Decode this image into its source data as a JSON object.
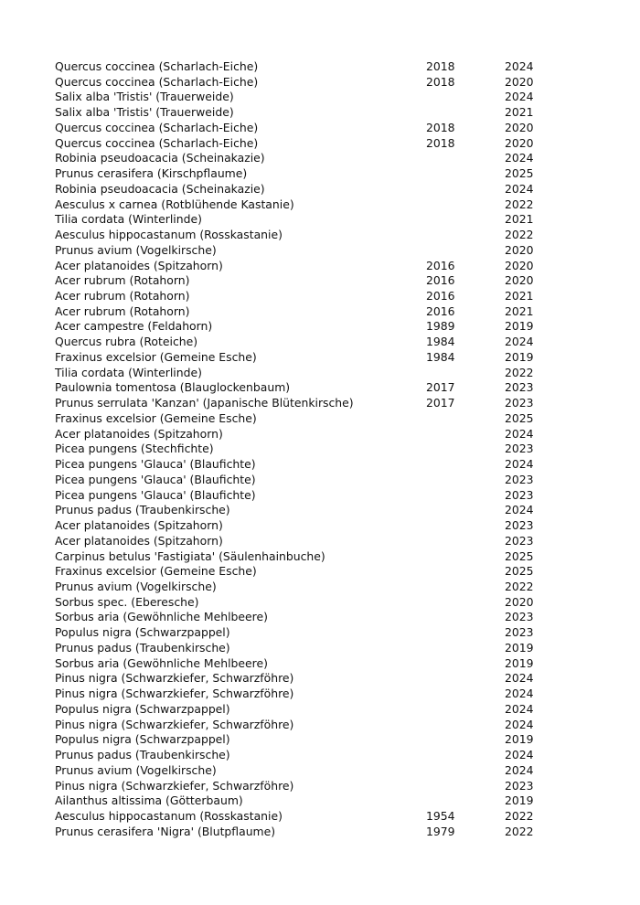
{
  "rows": [
    [
      "Quercus coccinea (Scharlach-Eiche)",
      "2018",
      "2024"
    ],
    [
      "Quercus coccinea (Scharlach-Eiche)",
      "2018",
      "2020"
    ],
    [
      "Salix alba 'Tristis' (Trauerweide)",
      "",
      "2024"
    ],
    [
      "Salix alba 'Tristis' (Trauerweide)",
      "",
      "2021"
    ],
    [
      "Quercus coccinea (Scharlach-Eiche)",
      "2018",
      "2020"
    ],
    [
      "Quercus coccinea (Scharlach-Eiche)",
      "2018",
      "2020"
    ],
    [
      "Robinia pseudoacacia (Scheinakazie)",
      "",
      "2024"
    ],
    [
      "Prunus cerasifera (Kirschpflaume)",
      "",
      "2025"
    ],
    [
      "Robinia pseudoacacia (Scheinakazie)",
      "",
      "2024"
    ],
    [
      "Aesculus x carnea (Rotblühende Kastanie)",
      "",
      "2022"
    ],
    [
      "Tilia cordata (Winterlinde)",
      "",
      "2021"
    ],
    [
      "Aesculus hippocastanum (Rosskastanie)",
      "",
      "2022"
    ],
    [
      "Prunus avium (Vogelkirsche)",
      "",
      "2020"
    ],
    [
      "Acer platanoides (Spitzahorn)",
      "2016",
      "2020"
    ],
    [
      "Acer rubrum (Rotahorn)",
      "2016",
      "2020"
    ],
    [
      "Acer rubrum (Rotahorn)",
      "2016",
      "2021"
    ],
    [
      "Acer rubrum (Rotahorn)",
      "2016",
      "2021"
    ],
    [
      "Acer campestre (Feldahorn)",
      "1989",
      "2019"
    ],
    [
      "Quercus rubra (Roteiche)",
      "1984",
      "2024"
    ],
    [
      "Fraxinus excelsior (Gemeine Esche)",
      "1984",
      "2019"
    ],
    [
      "Tilia cordata (Winterlinde)",
      "",
      "2022"
    ],
    [
      "Paulownia tomentosa (Blauglockenbaum)",
      "2017",
      "2023"
    ],
    [
      "Prunus serrulata 'Kanzan' (Japanische Blütenkirsche)",
      "2017",
      "2023"
    ],
    [
      "Fraxinus excelsior (Gemeine Esche)",
      "",
      "2025"
    ],
    [
      "Acer platanoides (Spitzahorn)",
      "",
      "2024"
    ],
    [
      "Picea pungens (Stechfichte)",
      "",
      "2023"
    ],
    [
      "Picea pungens 'Glauca' (Blaufichte)",
      "",
      "2024"
    ],
    [
      "Picea pungens 'Glauca' (Blaufichte)",
      "",
      "2023"
    ],
    [
      "Picea pungens 'Glauca' (Blaufichte)",
      "",
      "2023"
    ],
    [
      "Prunus padus (Traubenkirsche)",
      "",
      "2024"
    ],
    [
      "Acer platanoides (Spitzahorn)",
      "",
      "2023"
    ],
    [
      "Acer platanoides (Spitzahorn)",
      "",
      "2023"
    ],
    [
      "Carpinus betulus 'Fastigiata' (Säulenhainbuche)",
      "",
      "2025"
    ],
    [
      "Fraxinus excelsior (Gemeine Esche)",
      "",
      "2025"
    ],
    [
      "Prunus avium (Vogelkirsche)",
      "",
      "2022"
    ],
    [
      "Sorbus spec. (Eberesche)",
      "",
      "2020"
    ],
    [
      "Sorbus aria (Gewöhnliche Mehlbeere)",
      "",
      "2023"
    ],
    [
      "Populus nigra (Schwarzpappel)",
      "",
      "2023"
    ],
    [
      "Prunus padus (Traubenkirsche)",
      "",
      "2019"
    ],
    [
      "Sorbus aria (Gewöhnliche Mehlbeere)",
      "",
      "2019"
    ],
    [
      "Pinus nigra (Schwarzkiefer, Schwarzföhre)",
      "",
      "2024"
    ],
    [
      "Pinus nigra (Schwarzkiefer, Schwarzföhre)",
      "",
      "2024"
    ],
    [
      "Populus nigra (Schwarzpappel)",
      "",
      "2024"
    ],
    [
      "Pinus nigra (Schwarzkiefer, Schwarzföhre)",
      "",
      "2024"
    ],
    [
      "Populus nigra (Schwarzpappel)",
      "",
      "2019"
    ],
    [
      "Prunus padus (Traubenkirsche)",
      "",
      "2024"
    ],
    [
      "Prunus avium (Vogelkirsche)",
      "",
      "2024"
    ],
    [
      "Pinus nigra (Schwarzkiefer, Schwarzföhre)",
      "",
      "2023"
    ],
    [
      "Ailanthus altissima (Götterbaum)",
      "",
      "2019"
    ],
    [
      "Aesculus hippocastanum (Rosskastanie)",
      "1954",
      "2022"
    ],
    [
      "Prunus cerasifera 'Nigra' (Blutpflaume)",
      "1979",
      "2022"
    ]
  ]
}
